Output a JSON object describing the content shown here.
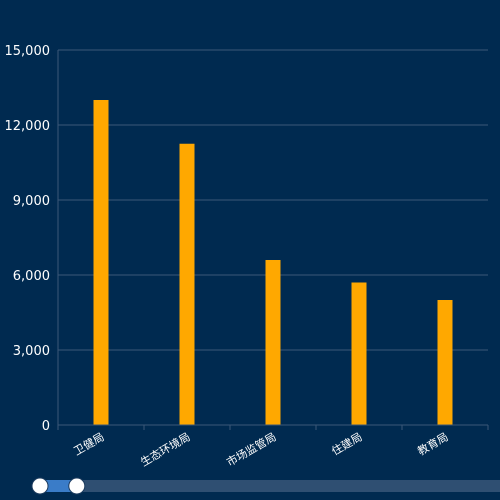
{
  "colors": {
    "background": "#002a50",
    "bar": "#ffa800",
    "grid": "#3b5878",
    "axis_text": "#ffffff",
    "slider_track": "#2f4f72",
    "slider_fill": "#3a7cc8",
    "slider_handle": "#ffffff"
  },
  "chart_data": {
    "type": "bar",
    "categories": [
      "卫健局",
      "生态环境局",
      "市场监管局",
      "住建局",
      "教育局"
    ],
    "values": [
      13000,
      11250,
      6600,
      5700,
      5000
    ],
    "ylim": [
      0,
      15000
    ],
    "yticks": [
      "0",
      "3,000",
      "6,000",
      "9,000",
      "12,000",
      "15,000"
    ],
    "ytick_values": [
      0,
      3000,
      6000,
      9000,
      12000,
      15000
    ],
    "grid": true,
    "xlabel_rotation_deg": -30
  },
  "zoom_slider": {
    "start_fraction": 0.0,
    "end_fraction": 0.08
  }
}
